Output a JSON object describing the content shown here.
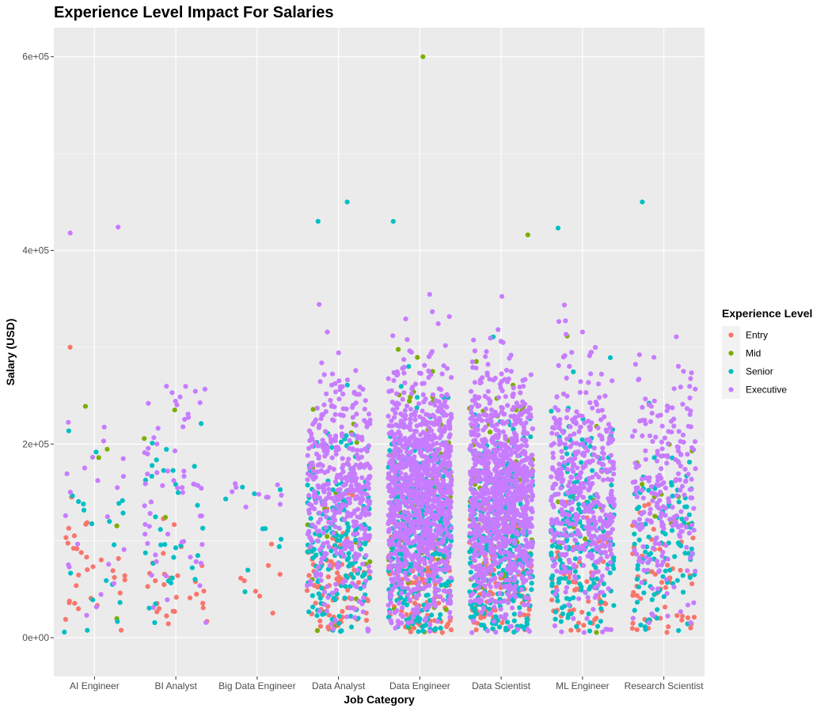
{
  "chart_data": {
    "type": "scatter",
    "title": "Experience Level Impact For Salaries",
    "xlabel": "Job Category",
    "ylabel": "Salary (USD)",
    "x_type": "categorical-jitter",
    "categories": [
      "AI Engineer",
      "BI Analyst",
      "Big Data Engineer",
      "Data Analyst",
      "Data Engineer",
      "Data Scientist",
      "ML Engineer",
      "Research Scientist"
    ],
    "ylim": [
      -40000,
      630000
    ],
    "yticks": [
      0,
      200000,
      400000,
      600000
    ],
    "ytick_labels": [
      "0e+00",
      "2e+05",
      "4e+05",
      "6e+05"
    ],
    "grid": true,
    "legend": {
      "title": "Experience Level",
      "position": "right"
    },
    "series": [
      {
        "name": "Entry",
        "color": "#F8766D"
      },
      {
        "name": "Mid",
        "color": "#7CAE00"
      },
      {
        "name": "Senior",
        "color": "#00BFC4"
      },
      {
        "name": "Executive",
        "color": "#C77CFF"
      }
    ],
    "notable_points": [
      {
        "category": "Data Engineer",
        "series": "Mid",
        "y": 600000
      },
      {
        "category": "AI Engineer",
        "series": "Executive",
        "y": 424000
      },
      {
        "category": "AI Engineer",
        "series": "Executive",
        "y": 418000
      },
      {
        "category": "AI Engineer",
        "series": "Entry",
        "y": 300000
      },
      {
        "category": "Data Analyst",
        "series": "Senior",
        "y": 450000
      },
      {
        "category": "Data Analyst",
        "series": "Senior",
        "y": 430000
      },
      {
        "category": "Data Engineer",
        "series": "Senior",
        "y": 430000
      },
      {
        "category": "Data Scientist",
        "series": "Mid",
        "y": 416000
      },
      {
        "category": "ML Engineer",
        "series": "Senior",
        "y": 423000
      },
      {
        "category": "Research Scientist",
        "series": "Senior",
        "y": 450000
      }
    ],
    "distribution": [
      {
        "category": "AI Engineer",
        "counts": {
          "Entry": 30,
          "Mid": 5,
          "Senior": 20,
          "Executive": 22
        },
        "y_range": [
          5000,
          424000
        ]
      },
      {
        "category": "BI Analyst",
        "counts": {
          "Entry": 28,
          "Mid": 3,
          "Senior": 32,
          "Executive": 60
        },
        "y_range": [
          5000,
          260000
        ]
      },
      {
        "category": "Big Data Engineer",
        "counts": {
          "Entry": 8,
          "Mid": 0,
          "Senior": 10,
          "Executive": 10
        },
        "y_range": [
          5000,
          163000
        ]
      },
      {
        "category": "Data Analyst",
        "counts": {
          "Entry": 90,
          "Mid": 20,
          "Senior": 180,
          "Executive": 420
        },
        "y_range": [
          5000,
          450000
        ]
      },
      {
        "category": "Data Engineer",
        "counts": {
          "Entry": 130,
          "Mid": 80,
          "Senior": 350,
          "Executive": 1100
        },
        "y_range": [
          5000,
          600000
        ]
      },
      {
        "category": "Data Scientist",
        "counts": {
          "Entry": 120,
          "Mid": 70,
          "Senior": 320,
          "Executive": 1000
        },
        "y_range": [
          5000,
          416000
        ]
      },
      {
        "category": "ML Engineer",
        "counts": {
          "Entry": 60,
          "Mid": 15,
          "Senior": 200,
          "Executive": 450
        },
        "y_range": [
          5000,
          423000
        ]
      },
      {
        "category": "Research Scientist",
        "counts": {
          "Entry": 55,
          "Mid": 12,
          "Senior": 100,
          "Executive": 230
        },
        "y_range": [
          5000,
          450000
        ]
      }
    ]
  }
}
